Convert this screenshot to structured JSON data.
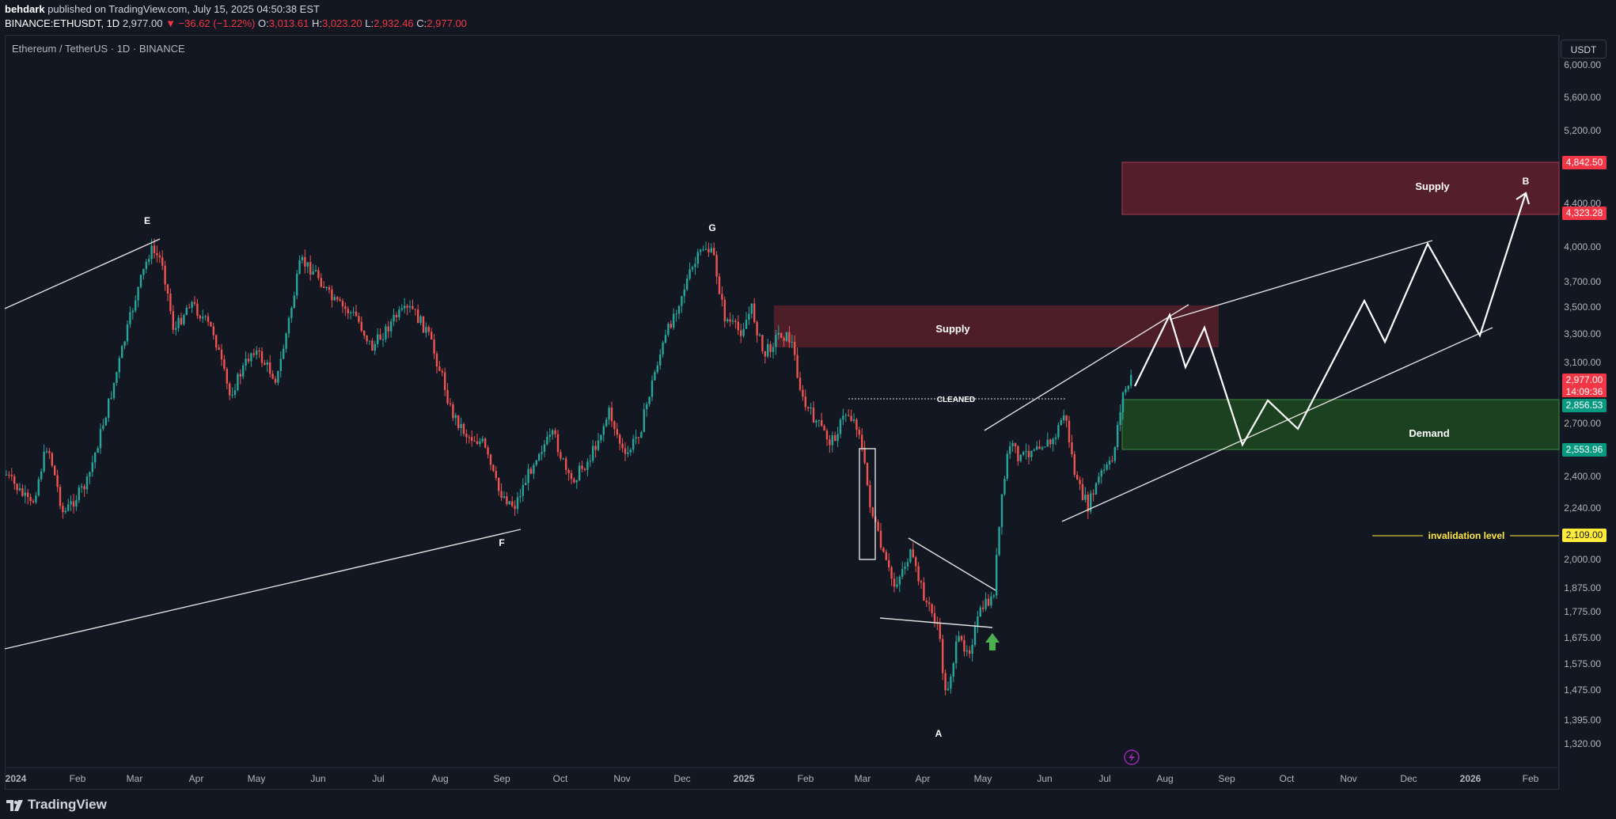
{
  "header": {
    "author": "behdark",
    "published": "published on TradingView.com, July 15, 2025 04:50:38 EST",
    "symbol": "BINANCE:ETHUSDT, 1D",
    "last_price": "2,977.00",
    "change": "▼ −36.62 (−1.22%)",
    "o_label": "O:",
    "o_value": "3,013.61",
    "h_label": "H:",
    "h_value": "3,023.20",
    "l_label": "L:",
    "l_value": "2,932.46",
    "c_label": "C:",
    "c_value": "2,977.00"
  },
  "chart_legend": "Ethereum / TetherUS · 1D · BINANCE",
  "currency": "USDT",
  "price_axis": {
    "labels": [
      "6,000.00",
      "5,600.00",
      "5,200.00",
      "4,400.00",
      "4,000.00",
      "3,700.00",
      "3,500.00",
      "3,300.00",
      "3,100.00",
      "2,700.00",
      "2,400.00",
      "2,240.00",
      "2,000.00",
      "1,875.00",
      "1,775.00",
      "1,675.00",
      "1,575.00",
      "1,475.00",
      "1,395.00",
      "1,320.00"
    ],
    "tags": {
      "supply_top": "4,842.50",
      "supply_bottom": "4,323.28",
      "last": "2,977.00",
      "timer": "14:09:36",
      "demand_top": "2,856.53",
      "demand_bottom": "2,553.96",
      "invalidation": "2,109.00"
    }
  },
  "time_axis": {
    "labels": [
      "2024",
      "Feb",
      "Mar",
      "Apr",
      "May",
      "Jun",
      "Jul",
      "Aug",
      "Sep",
      "Oct",
      "Nov",
      "Dec",
      "2025",
      "Feb",
      "Mar",
      "Apr",
      "May",
      "Jun",
      "Jul",
      "Aug",
      "Sep",
      "Oct",
      "Nov",
      "Dec",
      "2026",
      "Feb"
    ]
  },
  "annotations": {
    "wave_labels": [
      "E",
      "F",
      "G",
      "A",
      "B"
    ],
    "supply_upper": "Supply",
    "supply_lower": "Supply",
    "demand": "Demand",
    "cleaned": "CLEANED",
    "invalidation": "invalidation level"
  },
  "colors": {
    "background": "#131722",
    "up": "#26a69a",
    "down": "#ef5350",
    "supply_zone": "#5c1f2b",
    "demand_zone": "#1e4620",
    "invalidation": "#ffeb3b"
  },
  "footer": {
    "brand": "TradingView"
  }
}
